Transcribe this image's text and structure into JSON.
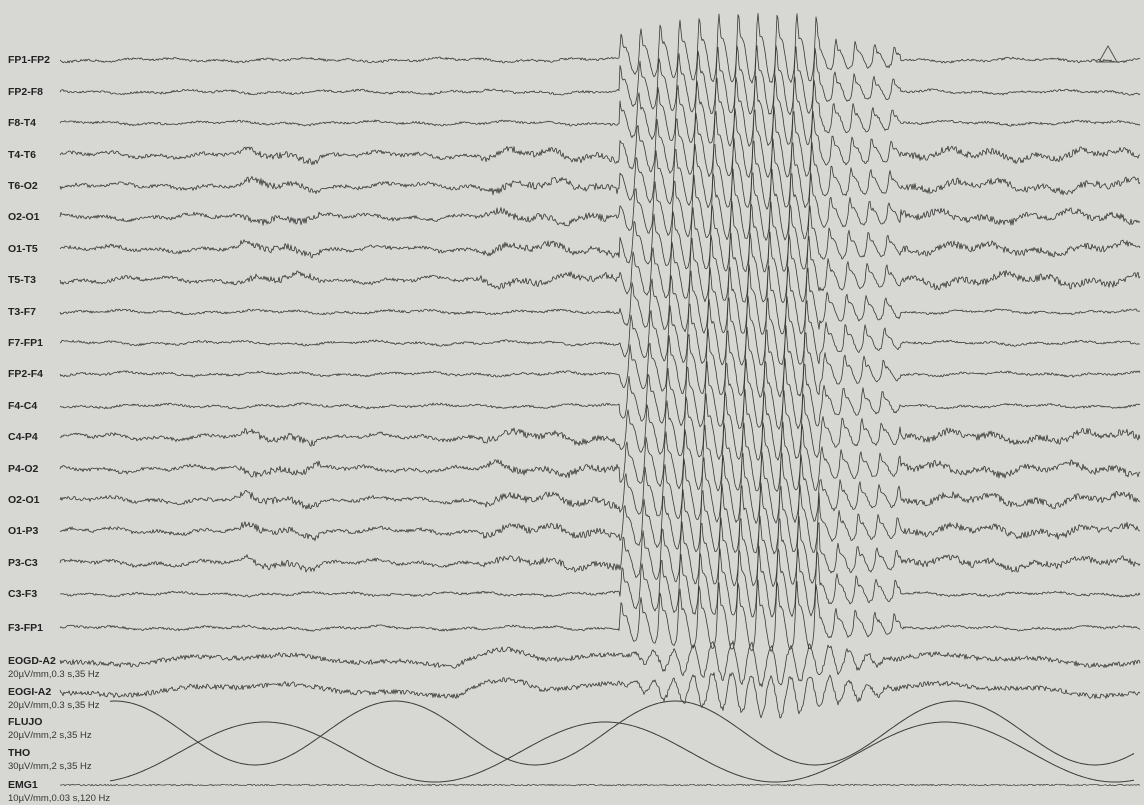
{
  "channels": [
    {
      "label": "FP1-FP2"
    },
    {
      "label": "FP2-F8"
    },
    {
      "label": "F8-T4"
    },
    {
      "label": "T4-T6"
    },
    {
      "label": "T6-O2"
    },
    {
      "label": "O2-O1"
    },
    {
      "label": "O1-T5"
    },
    {
      "label": "T5-T3"
    },
    {
      "label": "T3-F7"
    },
    {
      "label": "F7-FP1"
    },
    {
      "label": "FP2-F4"
    },
    {
      "label": "F4-C4"
    },
    {
      "label": "C4-P4"
    },
    {
      "label": "P4-O2"
    },
    {
      "label": "O2-O1"
    },
    {
      "label": "O1-P3"
    },
    {
      "label": "P3-C3"
    },
    {
      "label": "C3-F3"
    },
    {
      "label": "F3-FP1"
    },
    {
      "label": "EOGD-A2",
      "settings": "20µV/mm,0.3 s,35 Hz"
    },
    {
      "label": "EOGI-A2",
      "settings": "20µV/mm,0.3 s,35 Hz"
    },
    {
      "label": "FLUJO",
      "settings": "20µV/mm,2 s,35 Hz"
    },
    {
      "label": "THO",
      "settings": "30µV/mm,2 s,35 Hz"
    },
    {
      "label": "EMG1",
      "settings": "10µV/mm,0.03 s,120 Hz"
    }
  ],
  "marker_icon": "triangle-marker-icon",
  "colors": {
    "paper": "#d7d8d3",
    "trace": "#3a3a3a",
    "text": "#222222"
  }
}
